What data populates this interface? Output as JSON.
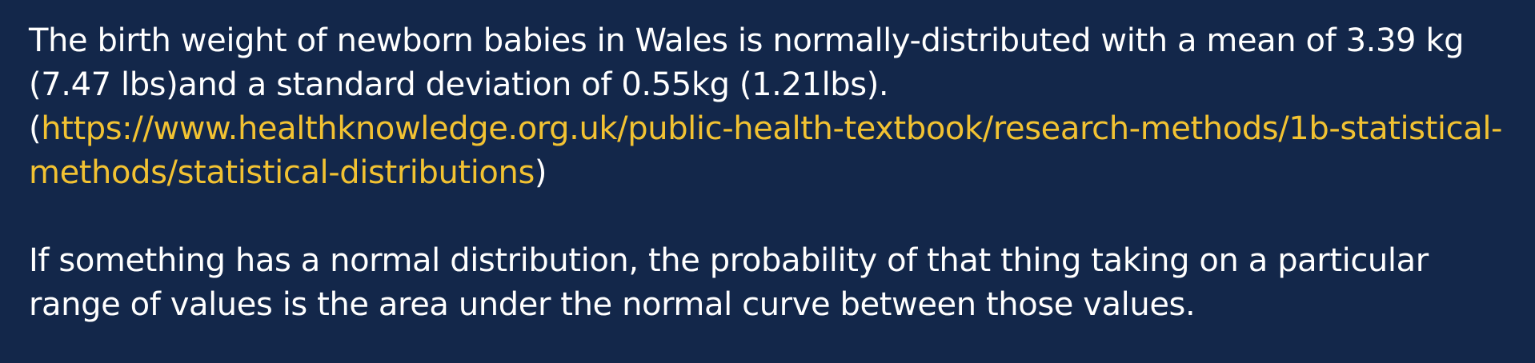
{
  "paragraph1": {
    "text_a": "The birth weight of newborn babies in Wales is normally-distributed with a mean of 3.39 kg (7.47 lbs)and a standard deviation of 0.55kg (1.21lbs).",
    "text_b": " (",
    "link_text": "https://www.healthknowledge.org.uk/public-health-textbook/research-methods/1b-statistical-methods/statistical-distributions",
    "text_c": ")"
  },
  "paragraph2": {
    "text": "If something has a normal distribution, the probability of that thing taking on a particular range of values is the area under the normal curve between those values."
  },
  "colors": {
    "background": "#13274a",
    "text": "#ffffff",
    "link": "#f2c232"
  }
}
